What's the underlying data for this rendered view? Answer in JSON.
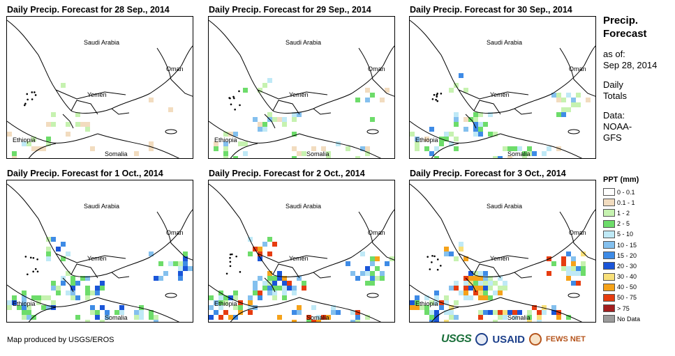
{
  "panels": [
    {
      "title": "Daily Precip. Forecast for 28 Sep., 2014",
      "intensity": 0
    },
    {
      "title": "Daily Precip. Forecast for 29 Sep., 2014",
      "intensity": 1
    },
    {
      "title": "Daily Precip. Forecast for 30 Sep., 2014",
      "intensity": 2
    },
    {
      "title": "Daily Precip. Forecast for 1 Oct., 2014",
      "intensity": 3
    },
    {
      "title": "Daily Precip. Forecast for 2 Oct., 2014",
      "intensity": 4
    },
    {
      "title": "Daily Precip. Forecast for 3 Oct., 2014",
      "intensity": 5
    }
  ],
  "map_labels": {
    "saudi": "Saudi Arabia",
    "oman": "Oman",
    "yemen": "Yemen",
    "ethiopia": "Ethiopia",
    "somalia": "Somalia"
  },
  "sidebar": {
    "title_line1": "Precip.",
    "title_line2": "Forecast",
    "asof_line1": "as of:",
    "asof_line2": "Sep 28, 2014",
    "daily_line1": "Daily",
    "daily_line2": "Totals",
    "data_line1": "Data:",
    "data_line2": "NOAA-",
    "data_line3": "GFS"
  },
  "legend": {
    "title": "PPT (mm)",
    "items": [
      {
        "label": "0 - 0.1",
        "color": "#ffffff"
      },
      {
        "label": "0.1 - 1",
        "color": "#f2dcbf"
      },
      {
        "label": "1 - 2",
        "color": "#c6f2b0"
      },
      {
        "label": "2 - 5",
        "color": "#6ddc6a"
      },
      {
        "label": "5 - 10",
        "color": "#bfe9f6"
      },
      {
        "label": "10 - 15",
        "color": "#84c0ee"
      },
      {
        "label": "15 - 20",
        "color": "#3e8be6"
      },
      {
        "label": "20 - 30",
        "color": "#1a55d8"
      },
      {
        "label": "30 - 40",
        "color": "#f8e07a"
      },
      {
        "label": "40 - 50",
        "color": "#f5a21a"
      },
      {
        "label": "50 - 75",
        "color": "#e63c10"
      },
      {
        "label": "> 75",
        "color": "#a31e1e"
      },
      {
        "label": "No Data",
        "color": "#9b9b9b"
      }
    ]
  },
  "footer": {
    "credit": "Map produced by USGS/EROS",
    "logo_usgs": "USGS",
    "logo_usaid": "USAID",
    "logo_fews": "FEWS NET"
  }
}
